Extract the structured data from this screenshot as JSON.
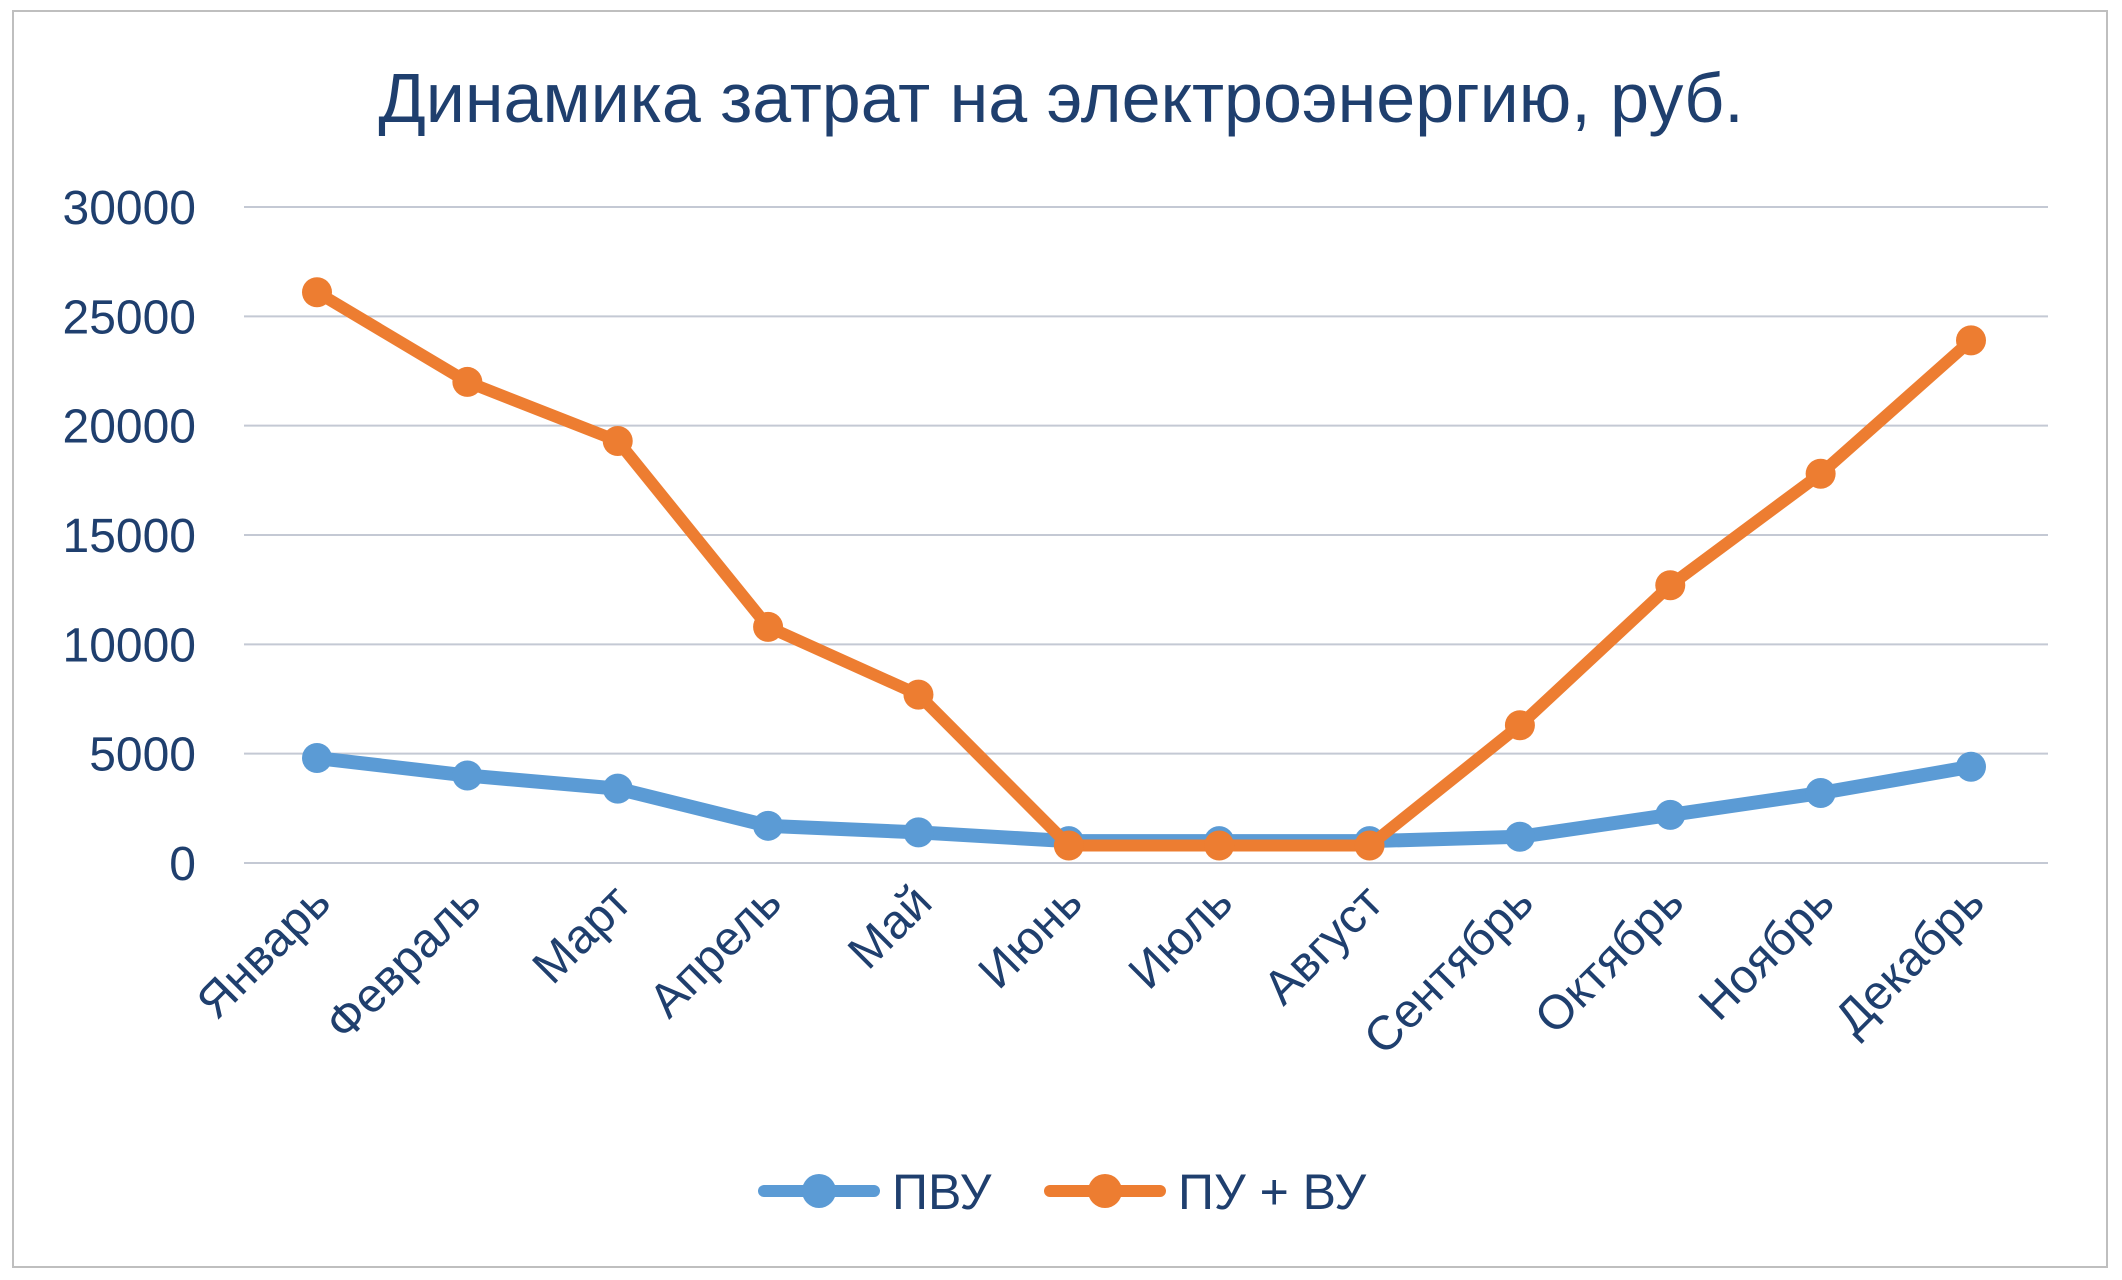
{
  "chart_data": {
    "type": "line",
    "title": "Динамика затрат на электроэнергию, руб.",
    "xlabel": "",
    "ylabel": "",
    "categories": [
      "Январь",
      "Февраль",
      "Март",
      "Апрель",
      "Май",
      "Июнь",
      "Июль",
      "Август",
      "Сентябрь",
      "Октябрь",
      "Ноябрь",
      "Декабрь"
    ],
    "ylim": [
      0,
      30000
    ],
    "yticks": [
      "0",
      "5000",
      "10000",
      "15000",
      "20000",
      "25000",
      "30000"
    ],
    "grid": true,
    "legend": "bottom",
    "series": [
      {
        "name": "ПВУ",
        "color": "#5b9bd5",
        "values": [
          4800,
          4000,
          3400,
          1700,
          1400,
          1000,
          1000,
          1000,
          1200,
          2200,
          3200,
          4400
        ]
      },
      {
        "name": "ПУ + ВУ",
        "color": "#ed7d31",
        "values": [
          26100,
          22000,
          19300,
          10800,
          7700,
          800,
          800,
          800,
          6300,
          12700,
          17800,
          23900
        ]
      }
    ]
  }
}
